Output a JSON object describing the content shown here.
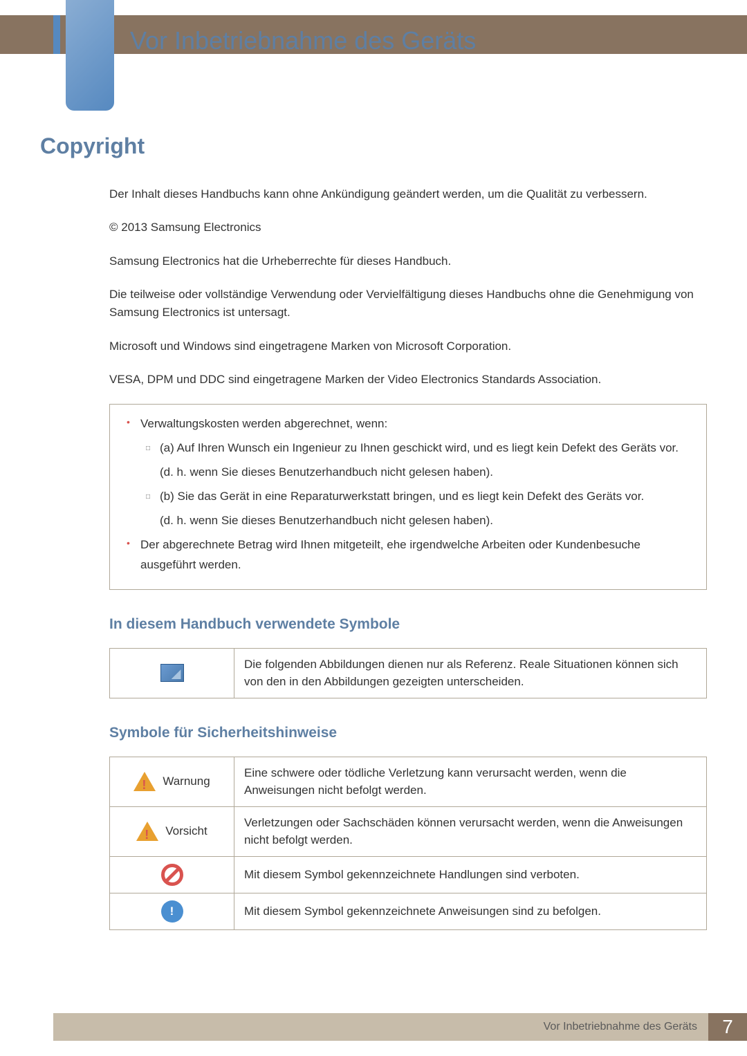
{
  "header": {
    "title": "Vor Inbetriebnahme des Geräts"
  },
  "section": {
    "title": "Copyright",
    "paragraphs": [
      "Der Inhalt dieses Handbuchs kann ohne Ankündigung geändert werden, um die Qualität zu verbessern.",
      "© 2013 Samsung Electronics",
      "Samsung Electronics hat die Urheberrechte für dieses Handbuch.",
      "Die teilweise oder vollständige Verwendung oder Vervielfältigung dieses Handbuchs ohne die Genehmigung von Samsung Electronics ist untersagt.",
      "Microsoft und Windows sind eingetragene Marken von Microsoft Corporation.",
      "VESA, DPM und DDC sind eingetragene Marken der Video Electronics Standards Association."
    ]
  },
  "infobox": {
    "items": [
      "Verwaltungskosten werden abgerechnet, wenn:",
      "(a) Auf Ihren Wunsch ein Ingenieur zu Ihnen geschickt wird, und es liegt kein Defekt des Geräts vor.",
      "(d. h. wenn Sie dieses Benutzerhandbuch nicht gelesen haben).",
      "(b) Sie das Gerät in eine Reparaturwerkstatt bringen, und es liegt kein Defekt des Geräts vor.",
      "(d. h. wenn Sie dieses Benutzerhandbuch nicht gelesen haben).",
      "Der abgerechnete Betrag wird Ihnen mitgeteilt, ehe irgendwelche Arbeiten oder Kundenbesuche ausgeführt werden."
    ]
  },
  "subsection1": {
    "title": "In diesem Handbuch verwendete Symbole",
    "row_text": "Die folgenden Abbildungen dienen nur als Referenz. Reale Situationen können sich von den in den Abbildungen gezeigten unterscheiden."
  },
  "subsection2": {
    "title": "Symbole für Sicherheitshinweise",
    "rows": [
      {
        "label": "Warnung",
        "text": "Eine schwere oder tödliche Verletzung kann verursacht werden, wenn die Anweisungen nicht befolgt werden."
      },
      {
        "label": "Vorsicht",
        "text": "Verletzungen oder Sachschäden können verursacht werden, wenn die Anweisungen nicht befolgt werden."
      },
      {
        "label": "",
        "text": "Mit diesem Symbol gekennzeichnete Handlungen sind verboten."
      },
      {
        "label": "",
        "text": "Mit diesem Symbol gekennzeichnete Anweisungen sind zu befolgen."
      }
    ]
  },
  "footer": {
    "text": "Vor Inbetriebnahme des Geräts",
    "page": "7"
  }
}
